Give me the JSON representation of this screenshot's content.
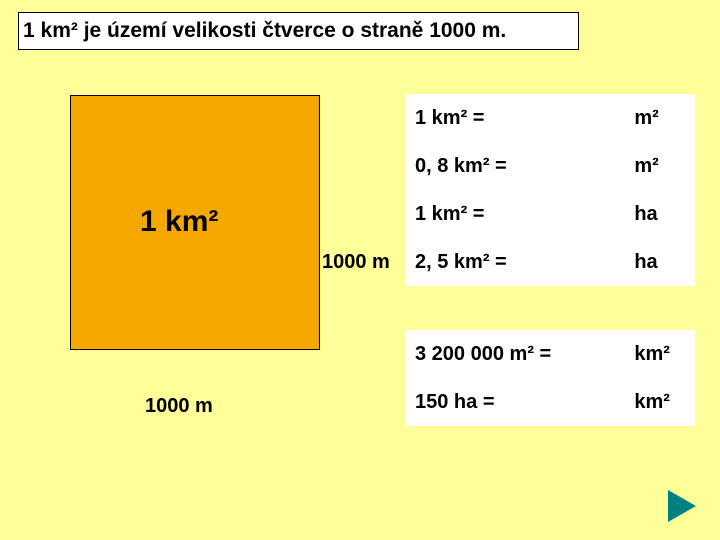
{
  "title": "1 km² je území velikosti čtverce o straně 1000 m.",
  "square": {
    "label": "1 km²",
    "side_right": "1000 m",
    "side_bottom": "1000 m",
    "fill_color": "#f5a900",
    "border_color": "#000000"
  },
  "table1": {
    "background_color": "#ffffff",
    "rows": [
      {
        "left": "1 km² =",
        "right": "m²"
      },
      {
        "left": "0, 8 km² =",
        "right": "m²"
      },
      {
        "left": "1 km² =",
        "right": "ha"
      },
      {
        "left": "2, 5 km² =",
        "right": "ha"
      }
    ]
  },
  "table2": {
    "background_color": "#ffffff",
    "rows": [
      {
        "left": "3 200 000 m² =",
        "right": "km²"
      },
      {
        "left": "150 ha =",
        "right": "km²"
      }
    ]
  },
  "colors": {
    "page_bg": "#ffff99",
    "text": "#000000",
    "arrow": "#008080"
  },
  "fontsize": {
    "title": 21,
    "square_label": 30,
    "side_label": 20,
    "table": 20
  }
}
